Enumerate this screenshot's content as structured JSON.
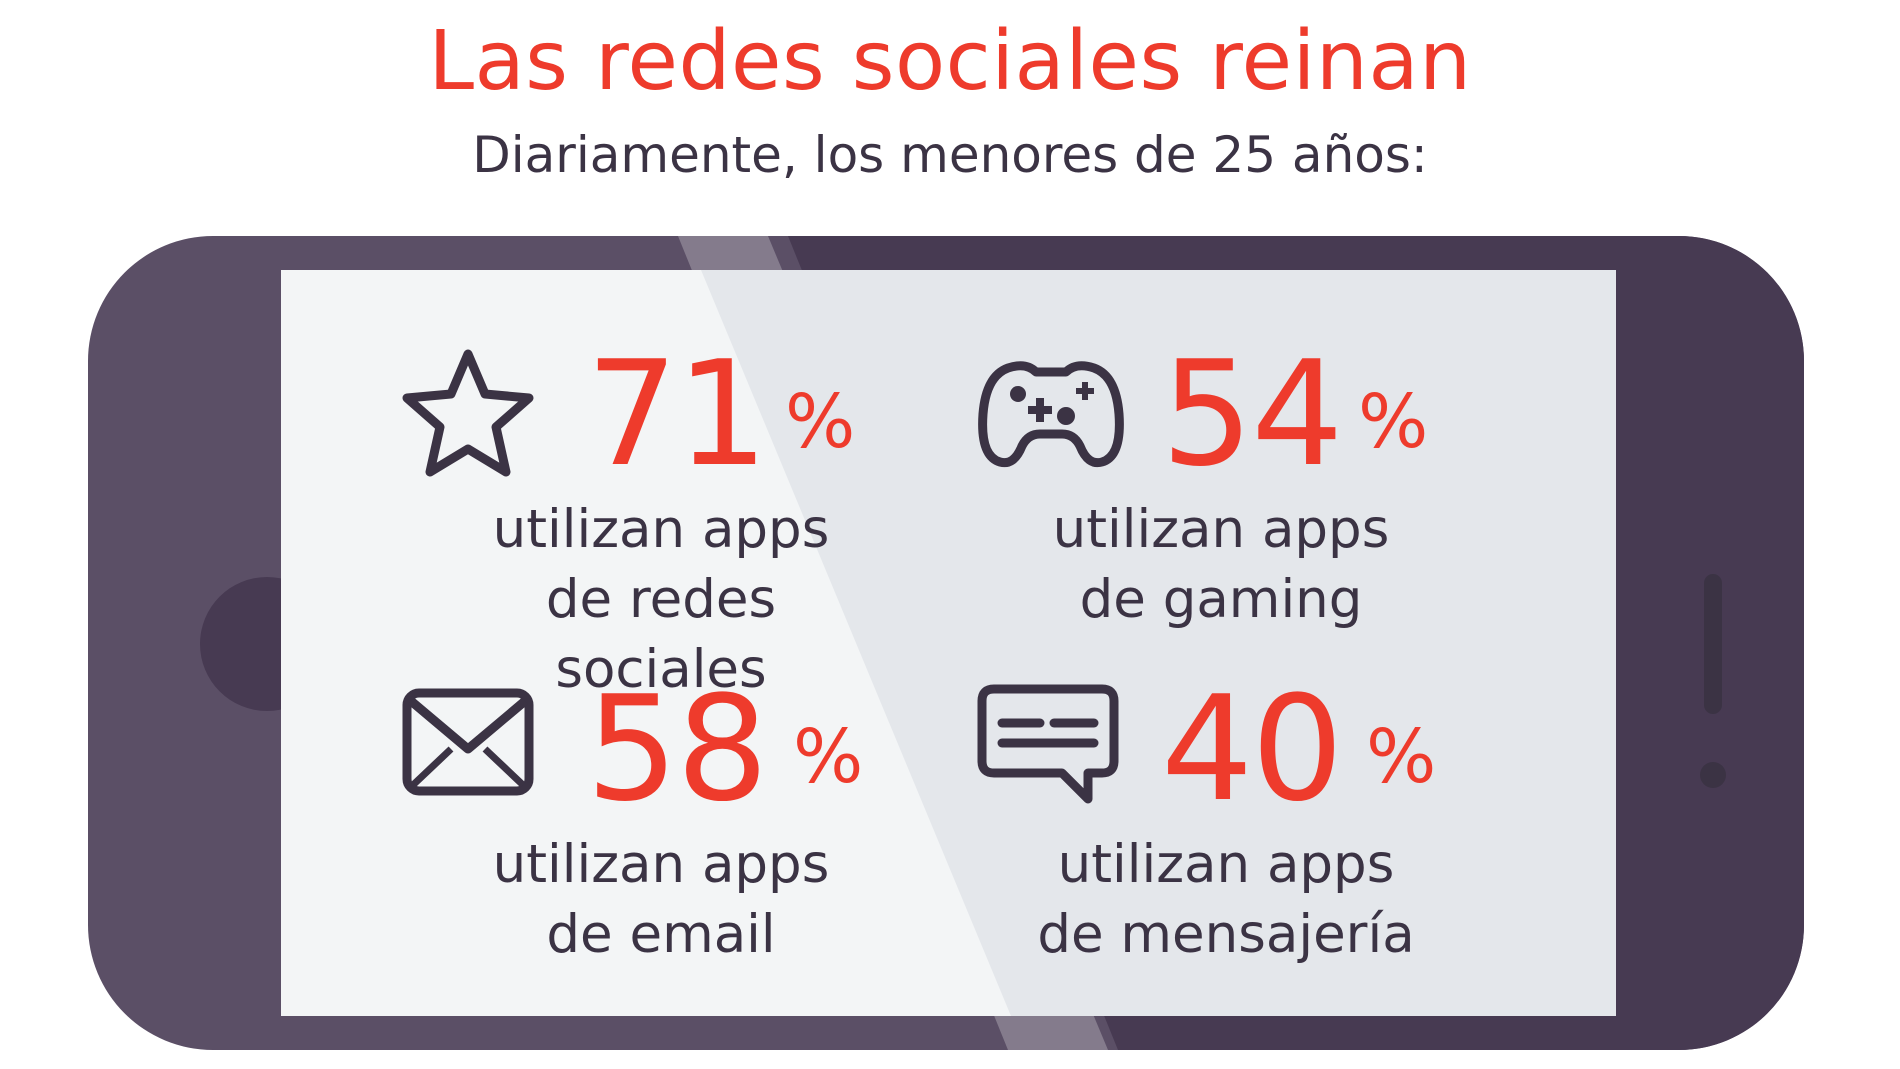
{
  "colors": {
    "accent": "#ee3b2c",
    "text_dark": "#3b3344",
    "phone_body": "#5b4f66",
    "phone_body_dark": "#473a52",
    "screen": "#e4e7eb",
    "screen_glare": "#f3f5f6"
  },
  "header": {
    "title": "Las redes sociales reinan",
    "subtitle": "Diariamente, los menores de 25 años:"
  },
  "stats": [
    {
      "icon": "star-icon",
      "value": "71",
      "unit": "%",
      "line1": "utilizan apps",
      "line2": "de redes sociales"
    },
    {
      "icon": "gamepad-icon",
      "value": "54",
      "unit": "%",
      "line1": "utilizan apps",
      "line2": "de gaming"
    },
    {
      "icon": "envelope-icon",
      "value": "58",
      "unit": "%",
      "line1": "utilizan apps",
      "line2": "de email"
    },
    {
      "icon": "chat-bubble-icon",
      "value": "40",
      "unit": "%",
      "line1": "utilizan apps",
      "line2": "de mensajería"
    }
  ]
}
